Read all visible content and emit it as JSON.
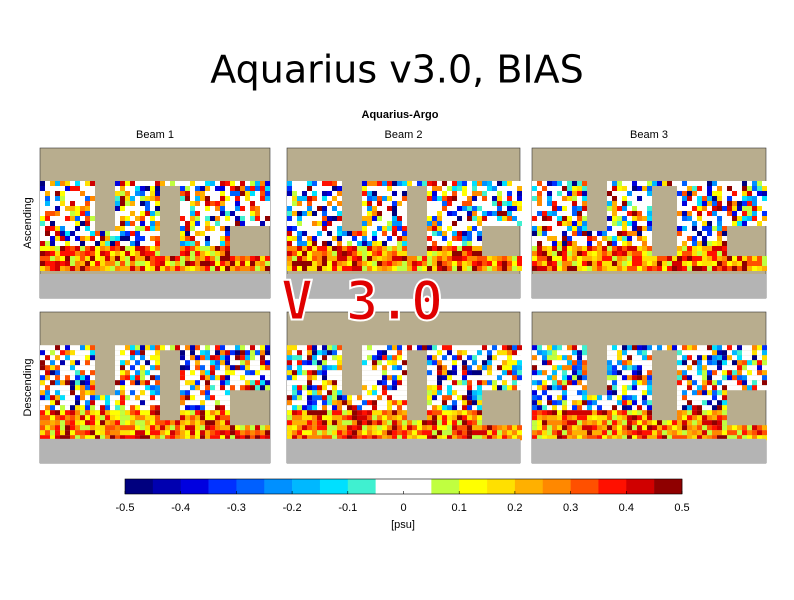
{
  "title": "Aquarius v3.0, BIAS",
  "figure": {
    "subtitle": "Aquarius-Argo",
    "columns": [
      "Beam 1",
      "Beam 2",
      "Beam 3"
    ],
    "rows": [
      "Ascending",
      "Descending"
    ],
    "overlay": "V 3.0",
    "colorbar": {
      "range": [
        -0.5,
        0.5
      ],
      "ticks": [
        -0.5,
        -0.4,
        -0.3,
        -0.2,
        -0.1,
        0,
        0.1,
        0.2,
        0.3,
        0.4,
        0.5
      ],
      "label": "[psu]",
      "colors": [
        "#00007f",
        "#0000b0",
        "#0000e0",
        "#0030ff",
        "#0060ff",
        "#0090ff",
        "#00b8ff",
        "#00e0ff",
        "#40f0d0",
        "#ffffff",
        "#ffffff",
        "#c0ff40",
        "#ffff00",
        "#ffe000",
        "#ffb000",
        "#ff8800",
        "#ff5000",
        "#ff1000",
        "#d00000",
        "#8f0000"
      ]
    }
  }
}
